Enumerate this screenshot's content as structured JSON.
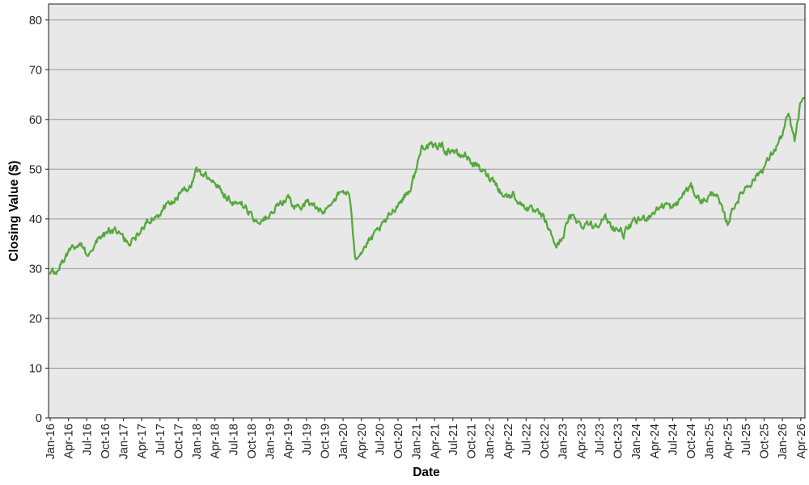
{
  "chart": {
    "background": "#ffffff",
    "plot_background": "#e8e8e8",
    "grid_color": "#969696",
    "border_color": "#3c3c3c",
    "tick_color": "#3c3c3c",
    "text_color": "#1f1f1f"
  },
  "chart_data": {
    "type": "line",
    "title": "",
    "xlabel": "Date",
    "ylabel": "Closing Value ($)",
    "ylim": [
      0,
      83.2
    ],
    "yticks": [
      0,
      10,
      20,
      30,
      40,
      50,
      60,
      70,
      80
    ],
    "grid": "horizontal-only",
    "legend": "none",
    "x_tick_labels": [
      "Jan-16",
      "Apr-16",
      "Jul-16",
      "Oct-16",
      "Jan-17",
      "Apr-17",
      "Jul-17",
      "Oct-17",
      "Jan-18",
      "Apr-18",
      "Jul-18",
      "Oct-18",
      "Jan-19",
      "Apr-19",
      "Jul-19",
      "Oct-19",
      "Jan-20",
      "Apr-20",
      "Jul-20",
      "Oct-20",
      "Jan-21",
      "Apr-21",
      "Jul-21",
      "Oct-21",
      "Jan-22",
      "Apr-22",
      "Jul-22",
      "Oct-22",
      "Jan-23",
      "Apr-23",
      "Jul-23",
      "Oct-23",
      "Jan-24",
      "Apr-24",
      "Jul-24",
      "Oct-24",
      "Jan-25",
      "Apr-25",
      "Jul-25",
      "Oct-25",
      "Jan-26",
      "Apr-26"
    ],
    "series": [
      {
        "name": "Closing Value ($)",
        "color": "#56a83e",
        "sampling": "monthly estimates read from a noisy daily closing-price line",
        "x": [
          "Jan-16",
          "Feb-16",
          "Mar-16",
          "Apr-16",
          "May-16",
          "Jun-16",
          "Jul-16",
          "Aug-16",
          "Sep-16",
          "Oct-16",
          "Nov-16",
          "Dec-16",
          "Jan-17",
          "Feb-17",
          "Mar-17",
          "Apr-17",
          "May-17",
          "Jun-17",
          "Jul-17",
          "Aug-17",
          "Sep-17",
          "Oct-17",
          "Nov-17",
          "Dec-17",
          "Jan-18",
          "Feb-18",
          "Mar-18",
          "Apr-18",
          "May-18",
          "Jun-18",
          "Jul-18",
          "Aug-18",
          "Sep-18",
          "Oct-18",
          "Nov-18",
          "Dec-18",
          "Jan-19",
          "Feb-19",
          "Mar-19",
          "Apr-19",
          "May-19",
          "Jun-19",
          "Jul-19",
          "Aug-19",
          "Sep-19",
          "Oct-19",
          "Nov-19",
          "Dec-19",
          "Jan-20",
          "Feb-20",
          "Mar-20",
          "Apr-20",
          "May-20",
          "Jun-20",
          "Jul-20",
          "Aug-20",
          "Sep-20",
          "Oct-20",
          "Nov-20",
          "Dec-20",
          "Jan-21",
          "Feb-21",
          "Mar-21",
          "Apr-21",
          "May-21",
          "Jun-21",
          "Jul-21",
          "Aug-21",
          "Sep-21",
          "Oct-21",
          "Nov-21",
          "Dec-21",
          "Jan-22",
          "Feb-22",
          "Mar-22",
          "Apr-22",
          "May-22",
          "Jun-22",
          "Jul-22",
          "Aug-22",
          "Sep-22",
          "Oct-22",
          "Nov-22",
          "Dec-22",
          "Jan-23",
          "Feb-23",
          "Mar-23",
          "Apr-23",
          "May-23",
          "Jun-23",
          "Jul-23",
          "Aug-23",
          "Sep-23",
          "Oct-23",
          "Nov-23",
          "Dec-23",
          "Jan-24",
          "Feb-24",
          "Mar-24",
          "Apr-24",
          "May-24",
          "Jun-24",
          "Jul-24",
          "Aug-24",
          "Sep-24",
          "Oct-24",
          "Nov-24",
          "Dec-24",
          "Jan-25",
          "Feb-25",
          "Mar-25",
          "Apr-25",
          "May-25",
          "Jun-25",
          "Jul-25",
          "Aug-25",
          "Sep-25",
          "Oct-25",
          "Nov-25",
          "Dec-25",
          "Jan-26",
          "Feb-26",
          "Mar-26",
          "Apr-26"
        ],
        "values": [
          29.5,
          29,
          31.5,
          33.5,
          34.5,
          35,
          33,
          34.5,
          36,
          37,
          37.5,
          37.5,
          36,
          35,
          36.5,
          38,
          39.5,
          40.5,
          41.5,
          42.5,
          43.5,
          44.5,
          45.5,
          46.5,
          50,
          49,
          48.5,
          47.5,
          46,
          44.5,
          43.5,
          43,
          42.5,
          40.5,
          39.5,
          40,
          40.5,
          42,
          43.5,
          44.5,
          42,
          42.5,
          43.5,
          43,
          41.5,
          41.5,
          43.5,
          44.5,
          45.5,
          45,
          32.5,
          33.5,
          35,
          36.5,
          38,
          39.5,
          41.5,
          43,
          44.5,
          46,
          50,
          55,
          54.5,
          54.5,
          55,
          53.5,
          54,
          52.5,
          53,
          51.5,
          50.5,
          49.5,
          48.5,
          47.5,
          45,
          44.5,
          45,
          43,
          42.5,
          41.5,
          41,
          40,
          37,
          34.5,
          36.5,
          40,
          40.5,
          38.5,
          39.5,
          38.5,
          39.5,
          40,
          38.5,
          38,
          37,
          38.5,
          39.5,
          40,
          40.5,
          41.5,
          42.5,
          43,
          42,
          43.5,
          45.5,
          46.5,
          44.5,
          43.5,
          44.5,
          45.5,
          42,
          39,
          42.5,
          44.5,
          46.5,
          47.5,
          49,
          50.5,
          52.5,
          54.5,
          57,
          61,
          55.5,
          63.5
        ]
      }
    ]
  }
}
